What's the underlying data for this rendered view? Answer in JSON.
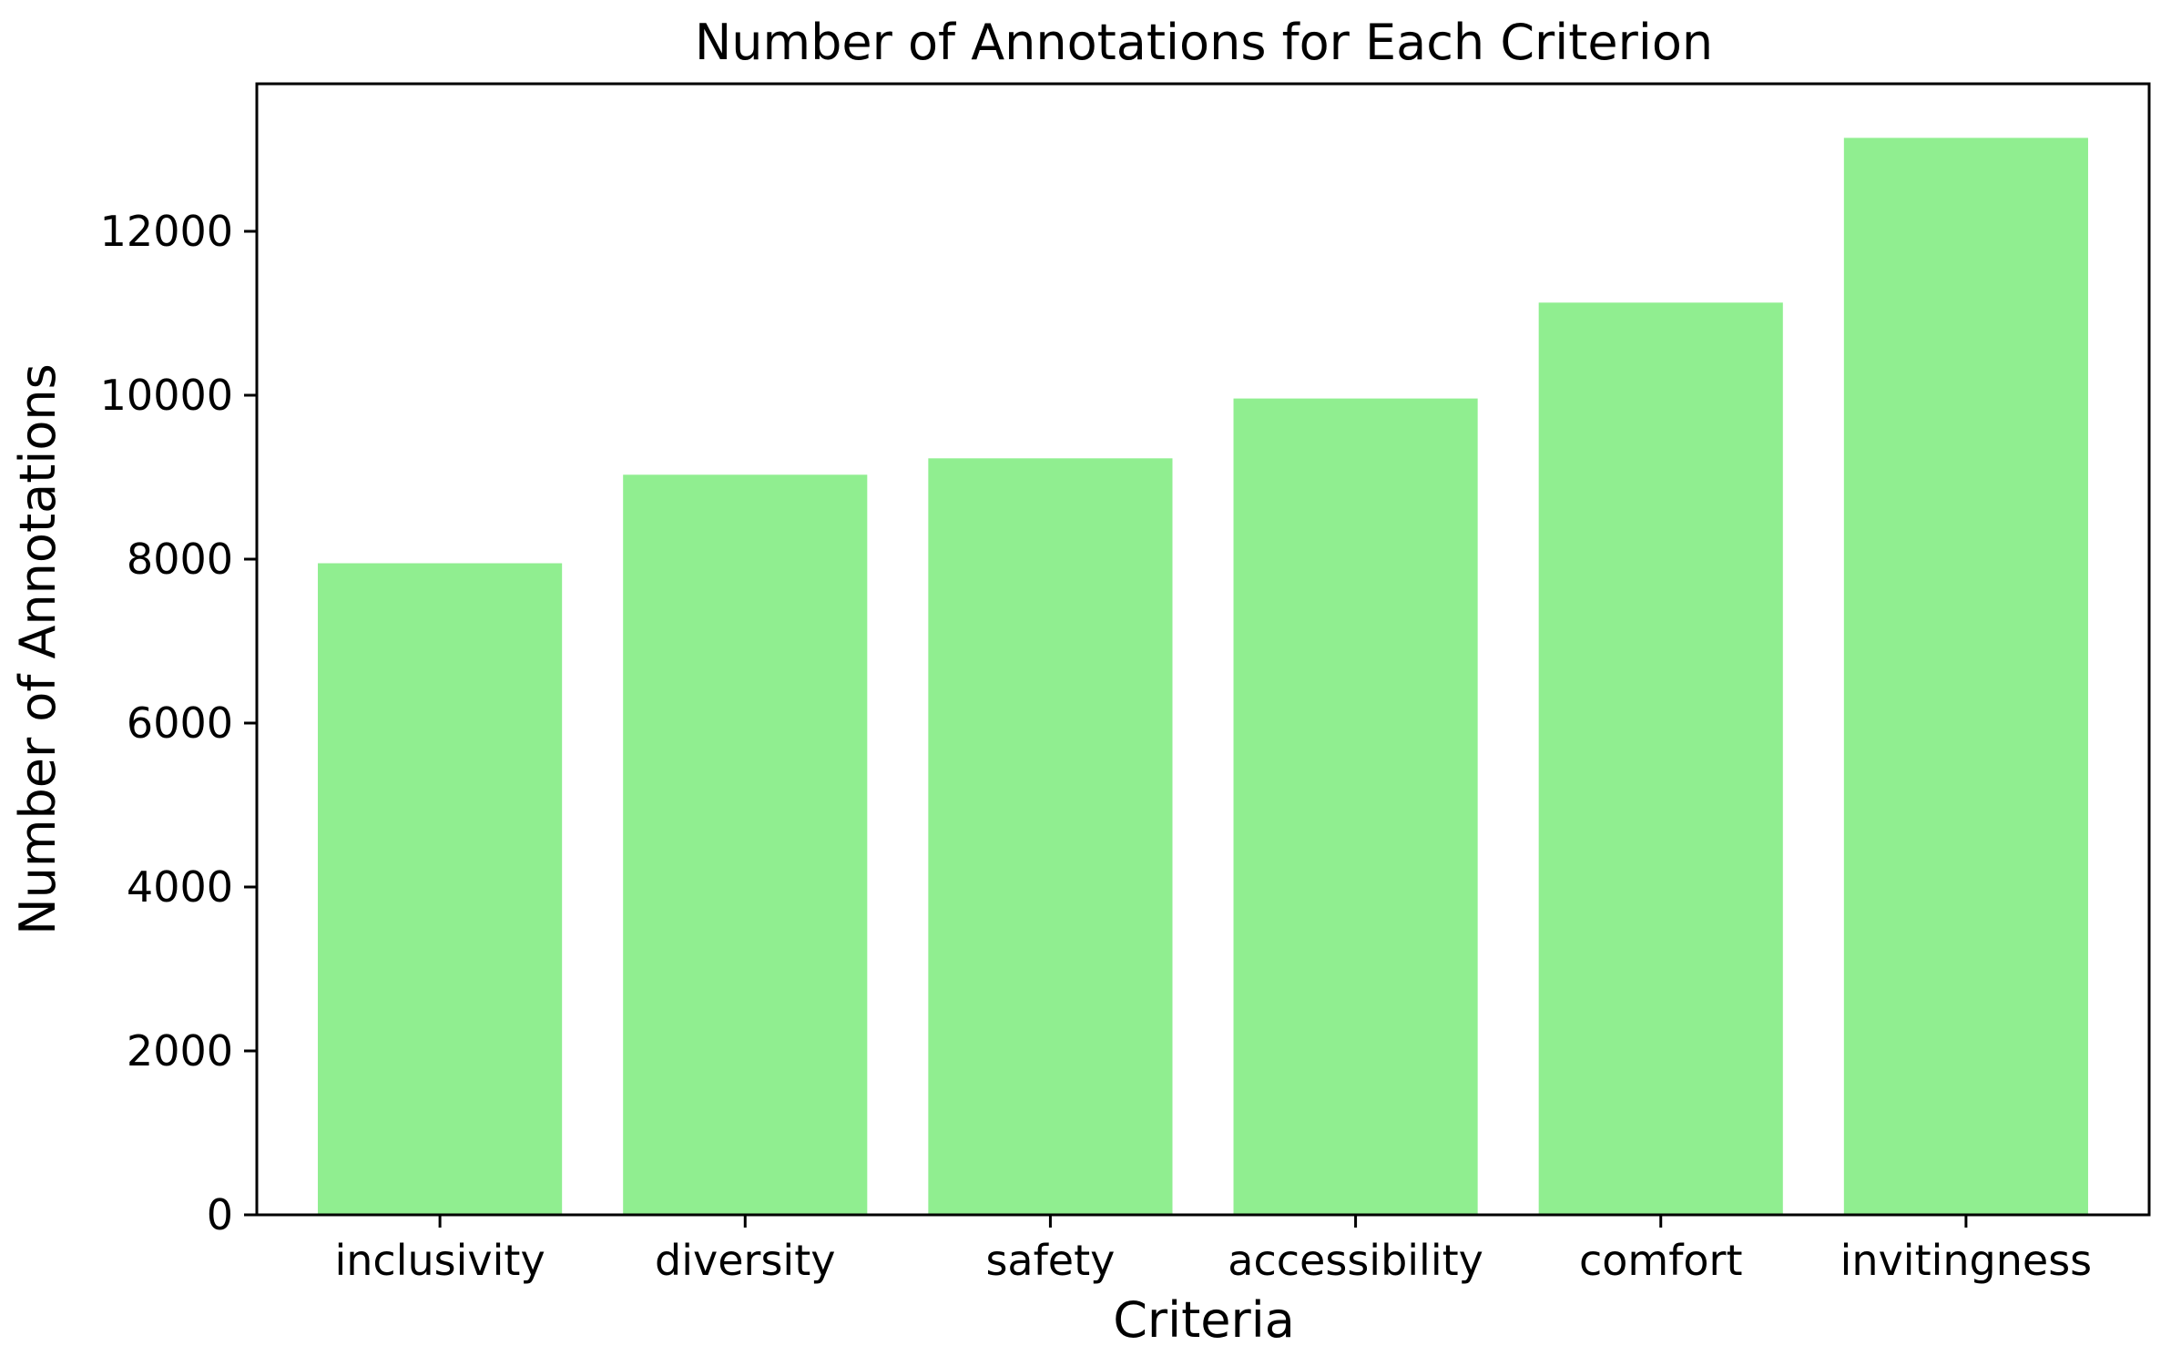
{
  "chart_data": {
    "type": "bar",
    "title": "Number of Annotations for Each Criterion",
    "xlabel": "Criteria",
    "ylabel": "Number of Annotations",
    "categories": [
      "inclusivity",
      "diversity",
      "safety",
      "accessibility",
      "comfort",
      "invitingness"
    ],
    "values": [
      7950,
      9030,
      9230,
      9960,
      11130,
      13140
    ],
    "ylim": [
      0,
      13800
    ],
    "yticks": [
      0,
      2000,
      4000,
      6000,
      8000,
      10000,
      12000
    ],
    "grid": false,
    "legend": "none",
    "bar_color": "#90EE90",
    "axis_color": "#000000"
  }
}
